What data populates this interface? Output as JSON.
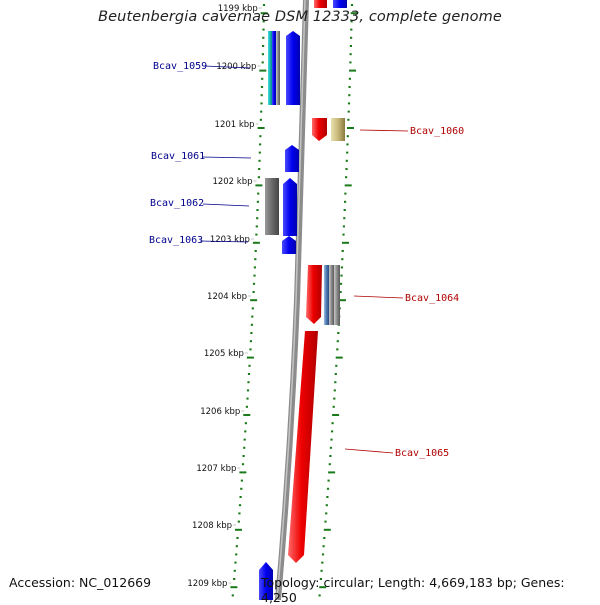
{
  "title": "Beutenbergia cavernae DSM 12333, complete genome",
  "footer": {
    "accession": "Accession: NC_012669",
    "stats": "Topology: circular; Length: 4,669,183 bp; Genes: 4,250"
  },
  "kbp_labels": [
    "1199 kbp",
    "1200 kbp",
    "1201 kbp",
    "1202 kbp",
    "1203 kbp",
    "1204 kbp",
    "1205 kbp",
    "1206 kbp",
    "1207 kbp",
    "1208 kbp",
    "1209 kbp"
  ],
  "genes": [
    {
      "id": "Bcav_1059",
      "strand": "minus"
    },
    {
      "id": "Bcav_1060",
      "strand": "plus"
    },
    {
      "id": "Bcav_1061",
      "strand": "minus"
    },
    {
      "id": "Bcav_1062",
      "strand": "minus"
    },
    {
      "id": "Bcav_1063",
      "strand": "minus"
    },
    {
      "id": "Bcav_1064",
      "strand": "plus"
    },
    {
      "id": "Bcav_1065",
      "strand": "plus"
    }
  ],
  "colors": {
    "minus_strand": "#0000ee",
    "plus_strand": "#ee0000",
    "backbone": "#8c8c8c",
    "tick": "#1a7a1a",
    "label_minus": "#00008b",
    "label_plus": "#b00000"
  }
}
